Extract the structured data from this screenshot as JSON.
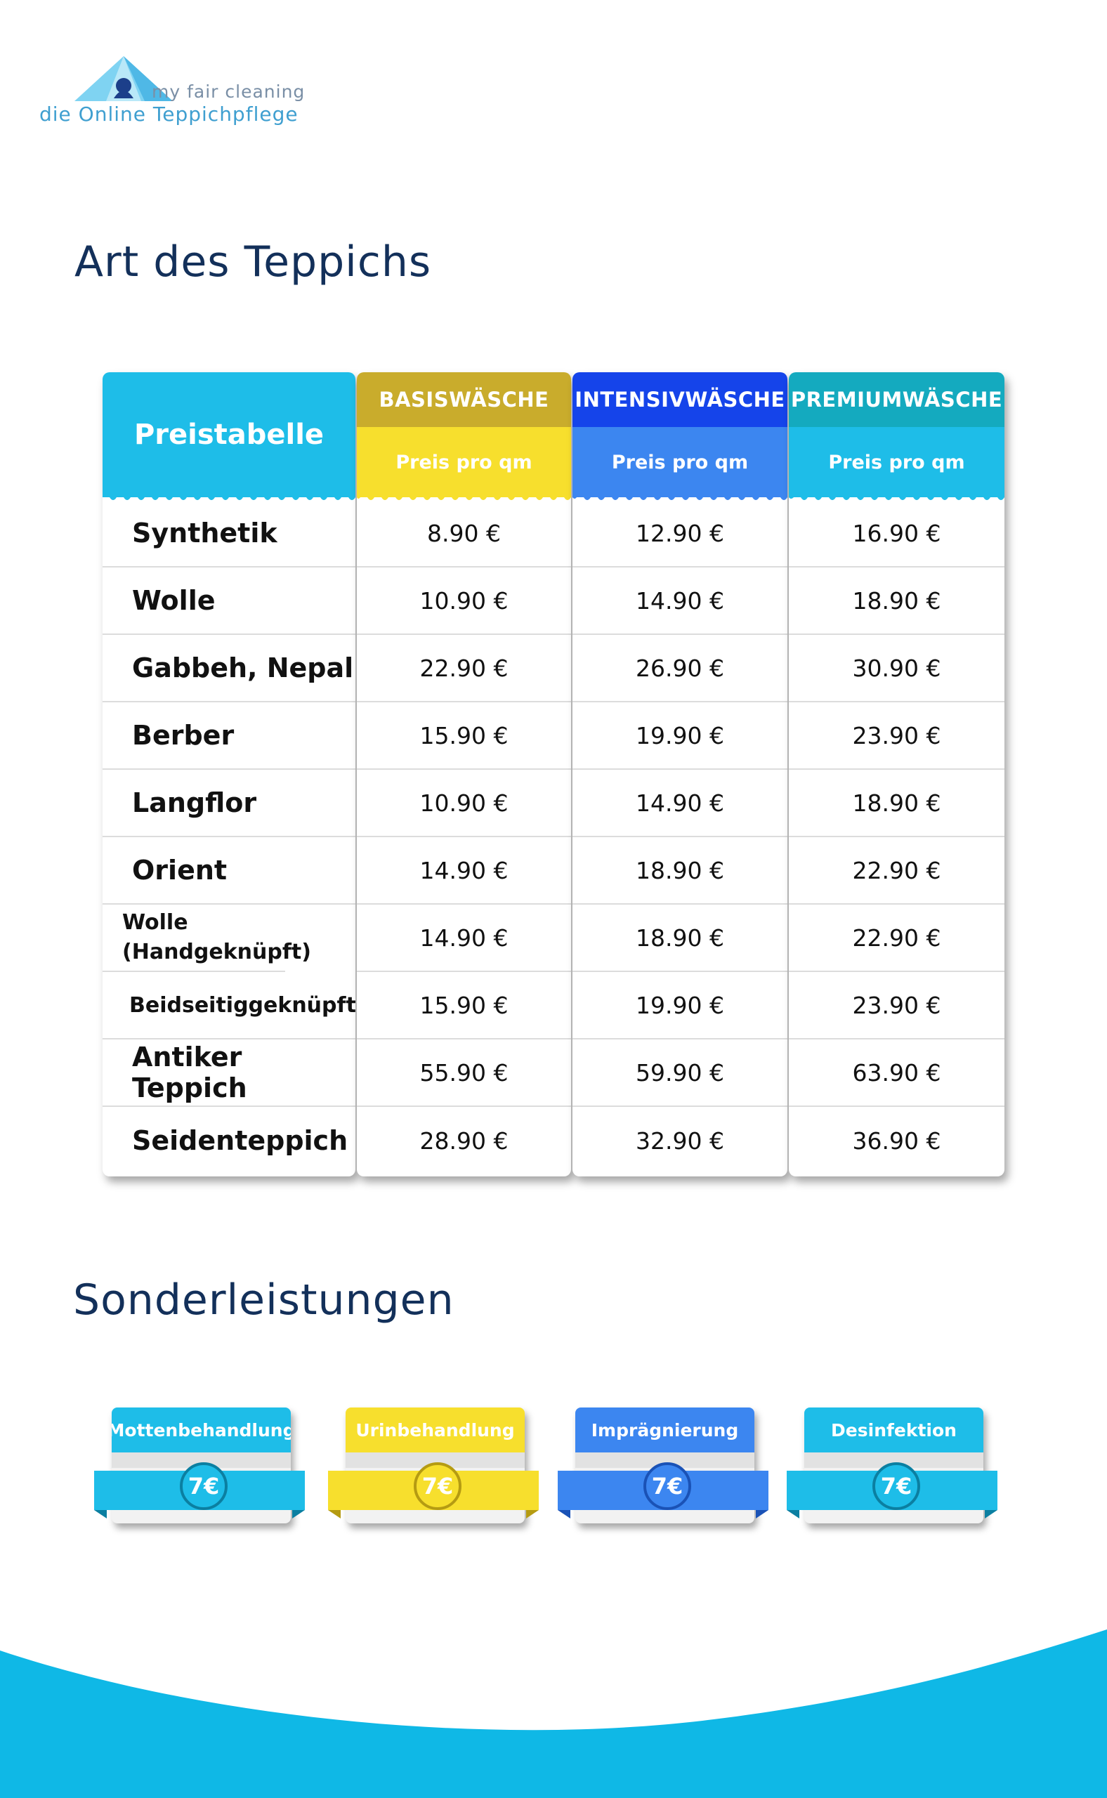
{
  "logo": {
    "line1": "my fair cleaning",
    "line2": "die Online Teppichpflege"
  },
  "title_main": "Art des Teppichs",
  "table": {
    "label": "Preistabelle",
    "columns": [
      {
        "name": "BASISWÄSCHE",
        "sub": "Preis pro qm",
        "color": "#c9ac2c",
        "sub_color": "#f7df2d"
      },
      {
        "name": "INTENSIVWÄSCHE",
        "sub": "Preis pro qm",
        "color": "#1544ea",
        "sub_color": "#3c86f0"
      },
      {
        "name": "PREMIUMWÄSCHE",
        "sub": "Preis pro qm",
        "color": "#14aabf",
        "sub_color": "#1ebde8"
      }
    ],
    "rows": [
      {
        "label": "Synthetik",
        "basis": "8.90 €",
        "intensiv": "12.90 €",
        "premium": "16.90 €"
      },
      {
        "label": "Wolle",
        "basis": "10.90 €",
        "intensiv": "14.90 €",
        "premium": "18.90 €"
      },
      {
        "label": "Gabbeh, Nepal",
        "basis": "22.90 €",
        "intensiv": "26.90 €",
        "premium": "30.90 €"
      },
      {
        "label": "Berber",
        "basis": "15.90 €",
        "intensiv": "19.90 €",
        "premium": "23.90 €"
      },
      {
        "label": "Langflor",
        "basis": "10.90 €",
        "intensiv": "14.90 €",
        "premium": "18.90 €"
      },
      {
        "label": "Orient",
        "basis": "14.90 €",
        "intensiv": "18.90 €",
        "premium": "22.90 €"
      },
      {
        "label": "Wolle (Handgeknüpft)",
        "basis": "14.90 €",
        "intensiv": "18.90 €",
        "premium": "22.90 €"
      },
      {
        "label": "Beidseitiggeknüpft",
        "basis": "15.90 €",
        "intensiv": "19.90 €",
        "premium": "23.90 €"
      },
      {
        "label": "Antiker Teppich",
        "basis": "55.90 €",
        "intensiv": "59.90 €",
        "premium": "63.90 €"
      },
      {
        "label": "Seidenteppich",
        "basis": "28.90 €",
        "intensiv": "32.90 €",
        "premium": "36.90 €"
      }
    ]
  },
  "title_special": "Sonderleistungen",
  "services": [
    {
      "name": "Mottenbehandlung",
      "price": "7€",
      "color": "#1ebde8",
      "dark": "#0b7fa1"
    },
    {
      "name": "Urinbehandlung",
      "price": "7€",
      "color": "#f7df2d",
      "dark": "#b59b12"
    },
    {
      "name": "Imprägnierung",
      "price": "7€",
      "color": "#3c86f0",
      "dark": "#1a52b6"
    },
    {
      "name": "Desinfektion",
      "price": "7€",
      "color": "#1ebde8",
      "dark": "#0b7fa1"
    }
  ],
  "colors": {
    "title": "#13305a",
    "cyan": "#1ebde8",
    "wave": "#0fb8e6"
  }
}
